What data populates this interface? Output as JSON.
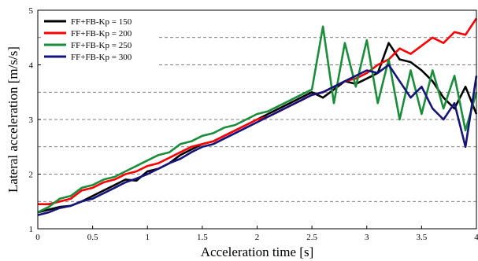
{
  "chart_data": {
    "type": "line",
    "xlabel": "Acceleration time  [s]",
    "ylabel": "Lateral acceleration  [m/s/s]",
    "xlim": [
      0,
      4
    ],
    "ylim": [
      1,
      5
    ],
    "x_ticks": [
      "0",
      "0.5",
      "1",
      "1.5",
      "2",
      "2.5",
      "3",
      "3.5",
      "4"
    ],
    "y_ticks": [
      "1",
      "2",
      "3",
      "4",
      "5"
    ],
    "grid": "dashed horizontal lines at every 0.5 m/s/s",
    "legend_position": "top-left",
    "series": [
      {
        "name": "FF+FB-Kp = 150",
        "color": "#000000",
        "x": [
          0,
          0.1,
          0.2,
          0.3,
          0.4,
          0.5,
          0.6,
          0.7,
          0.8,
          0.9,
          1.0,
          1.1,
          1.2,
          1.3,
          1.4,
          1.5,
          1.6,
          1.7,
          1.8,
          1.9,
          2.0,
          2.1,
          2.2,
          2.3,
          2.4,
          2.5,
          2.6,
          2.7,
          2.8,
          2.9,
          3.0,
          3.1,
          3.2,
          3.3,
          3.4,
          3.5,
          3.6,
          3.7,
          3.8,
          3.9,
          4.0
        ],
        "y": [
          1.3,
          1.35,
          1.4,
          1.42,
          1.5,
          1.6,
          1.7,
          1.8,
          1.9,
          1.88,
          2.05,
          2.1,
          2.2,
          2.35,
          2.45,
          2.55,
          2.6,
          2.7,
          2.8,
          2.9,
          3.0,
          3.1,
          3.2,
          3.3,
          3.4,
          3.5,
          3.4,
          3.55,
          3.7,
          3.65,
          3.75,
          3.85,
          4.4,
          4.1,
          4.05,
          3.9,
          3.7,
          3.4,
          3.2,
          3.6,
          3.1
        ]
      },
      {
        "name": "FF+FB-Kp = 200",
        "color": "#ff0000",
        "x": [
          0,
          0.1,
          0.2,
          0.3,
          0.4,
          0.5,
          0.6,
          0.7,
          0.8,
          0.9,
          1.0,
          1.1,
          1.2,
          1.3,
          1.4,
          1.5,
          1.6,
          1.7,
          1.8,
          1.9,
          2.0,
          2.1,
          2.2,
          2.3,
          2.4,
          2.5,
          2.6,
          2.7,
          2.8,
          2.9,
          3.0,
          3.1,
          3.2,
          3.3,
          3.4,
          3.5,
          3.6,
          3.7,
          3.8,
          3.9,
          4.0
        ],
        "y": [
          1.45,
          1.45,
          1.5,
          1.55,
          1.7,
          1.75,
          1.85,
          1.9,
          2.0,
          2.05,
          2.15,
          2.2,
          2.3,
          2.4,
          2.5,
          2.55,
          2.6,
          2.7,
          2.8,
          2.9,
          3.0,
          3.05,
          3.15,
          3.25,
          3.35,
          3.45,
          3.5,
          3.6,
          3.7,
          3.75,
          3.85,
          4.0,
          4.1,
          4.3,
          4.2,
          4.35,
          4.5,
          4.4,
          4.6,
          4.55,
          4.85
        ]
      },
      {
        "name": "FF+FB-Kp = 250",
        "color": "#1a8c3a",
        "x": [
          0,
          0.1,
          0.2,
          0.3,
          0.4,
          0.5,
          0.6,
          0.7,
          0.8,
          0.9,
          1.0,
          1.1,
          1.2,
          1.3,
          1.4,
          1.5,
          1.6,
          1.7,
          1.8,
          1.9,
          2.0,
          2.1,
          2.2,
          2.3,
          2.4,
          2.5,
          2.6,
          2.7,
          2.8,
          2.9,
          3.0,
          3.1,
          3.2,
          3.3,
          3.4,
          3.5,
          3.6,
          3.7,
          3.8,
          3.9,
          4.0
        ],
        "y": [
          1.3,
          1.4,
          1.55,
          1.6,
          1.75,
          1.8,
          1.9,
          1.95,
          2.05,
          2.15,
          2.25,
          2.35,
          2.4,
          2.55,
          2.6,
          2.7,
          2.75,
          2.85,
          2.9,
          3.0,
          3.1,
          3.15,
          3.25,
          3.35,
          3.45,
          3.55,
          4.7,
          3.3,
          4.4,
          3.6,
          4.45,
          3.3,
          4.1,
          3.0,
          3.9,
          3.1,
          3.9,
          3.2,
          3.8,
          2.8,
          3.5
        ]
      },
      {
        "name": "FF+FB-Kp = 300",
        "color": "#14147a",
        "x": [
          0,
          0.1,
          0.2,
          0.3,
          0.4,
          0.5,
          0.6,
          0.7,
          0.8,
          0.9,
          1.0,
          1.1,
          1.2,
          1.3,
          1.4,
          1.5,
          1.6,
          1.7,
          1.8,
          1.9,
          2.0,
          2.1,
          2.2,
          2.3,
          2.4,
          2.5,
          2.6,
          2.7,
          2.8,
          2.9,
          3.0,
          3.1,
          3.2,
          3.3,
          3.4,
          3.5,
          3.6,
          3.7,
          3.8,
          3.9,
          4.0
        ],
        "y": [
          1.25,
          1.3,
          1.38,
          1.42,
          1.5,
          1.55,
          1.65,
          1.75,
          1.85,
          1.92,
          2.0,
          2.1,
          2.2,
          2.28,
          2.4,
          2.5,
          2.55,
          2.65,
          2.75,
          2.85,
          2.95,
          3.05,
          3.15,
          3.25,
          3.35,
          3.45,
          3.5,
          3.6,
          3.7,
          3.8,
          3.9,
          3.85,
          4.0,
          3.7,
          3.4,
          3.6,
          3.2,
          3.0,
          3.3,
          2.5,
          3.8
        ]
      }
    ]
  }
}
